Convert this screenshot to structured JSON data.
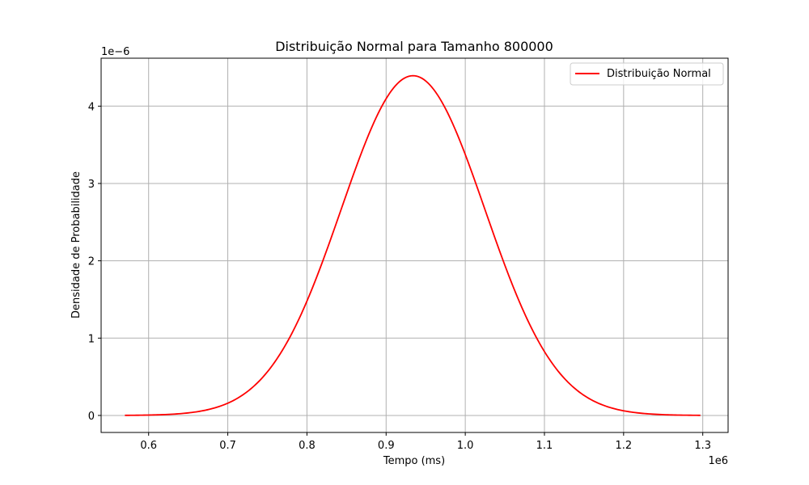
{
  "chart_data": {
    "type": "line",
    "title": "Distribuição Normal para Tamanho 800000",
    "xlabel": "Tempo (ms)",
    "ylabel": "Densidade de Probabilidade",
    "x_offset_label": "1e6",
    "y_offset_label": "1e−6",
    "xlim": [
      0.54,
      1.332
    ],
    "ylim": [
      -0.22,
      4.62
    ],
    "x_ticks": [
      0.6,
      0.7,
      0.8,
      0.9,
      1.0,
      1.1,
      1.2,
      1.3
    ],
    "x_tick_labels": [
      "0.6",
      "0.7",
      "0.8",
      "0.9",
      "1.0",
      "1.1",
      "1.2",
      "1.3"
    ],
    "y_ticks": [
      0,
      1,
      2,
      3,
      4
    ],
    "y_tick_labels": [
      "0",
      "1",
      "2",
      "3",
      "4"
    ],
    "grid": true,
    "legend_position": "top-right",
    "series": [
      {
        "name": "Distribuição Normal",
        "color": "#ff0000",
        "x_start": 0.57,
        "x_end": 1.297,
        "mean": 0.934,
        "std": 0.0908
      }
    ]
  }
}
